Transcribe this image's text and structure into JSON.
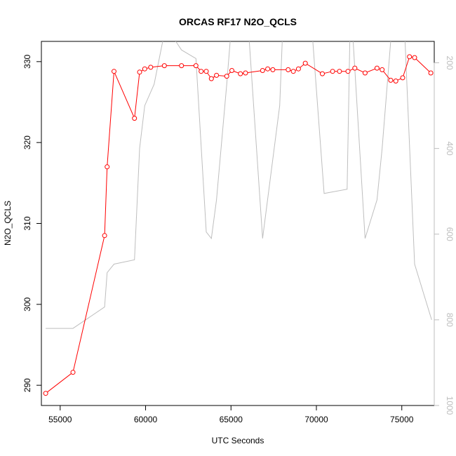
{
  "chart_data": {
    "type": "line",
    "title": "ORCAS RF17 N2O_QCLS",
    "xlabel": "UTC Seconds",
    "ylabel": "N2O_QCLS",
    "xlim": [
      53900,
      76900
    ],
    "ylim": [
      287.5,
      332.5
    ],
    "x_ticks": [
      55000,
      60000,
      65000,
      70000,
      75000
    ],
    "y_ticks": [
      290,
      300,
      310,
      320,
      330
    ],
    "y2lim": [
      1000,
      150
    ],
    "y2_ticks": [
      200,
      400,
      600,
      800,
      1000
    ],
    "y2_reversed": true,
    "grid": false,
    "legend": "none",
    "colors": {
      "primary": "#ff0000",
      "secondary": "#bebebe",
      "axis": "#000000",
      "axis_right": "#bdbdbd"
    },
    "series": [
      {
        "axis": "left",
        "style": "line+points",
        "x": [
          54150,
          55750,
          57600,
          57750,
          58150,
          59350,
          59650,
          59950,
          60300,
          61100,
          62100,
          62950,
          63250,
          63550,
          63850,
          64150,
          64750,
          65050,
          65550,
          65850,
          66850,
          67150,
          67450,
          68350,
          68650,
          68950,
          69350,
          70350,
          70950,
          71350,
          71850,
          72250,
          72850,
          73550,
          73850,
          74350,
          74650,
          75050,
          75450,
          75750,
          76700
        ],
        "y": [
          289.0,
          291.6,
          308.5,
          317.0,
          328.8,
          323.0,
          328.7,
          329.1,
          329.3,
          329.5,
          329.5,
          329.5,
          328.8,
          328.8,
          327.9,
          328.3,
          328.2,
          328.9,
          328.5,
          328.6,
          328.9,
          329.1,
          329.0,
          329.0,
          328.8,
          329.1,
          329.8,
          328.5,
          328.8,
          328.8,
          328.8,
          329.2,
          328.6,
          329.2,
          329.0,
          327.7,
          327.6,
          328.0,
          330.6,
          330.5,
          328.6
        ]
      },
      {
        "axis": "right",
        "style": "line",
        "x": [
          54150,
          55750,
          57600,
          57750,
          58150,
          59350,
          59650,
          59950,
          60500,
          61000,
          61100,
          62100,
          62950,
          63550,
          63850,
          64150,
          64750,
          65050,
          65550,
          65850,
          66850,
          67850,
          68000,
          68650,
          69550,
          70450,
          71800,
          72000,
          72850,
          73550,
          73850,
          74350,
          74800,
          75050,
          75750,
          76750
        ],
        "y": [
          820,
          820,
          770,
          690,
          670,
          660,
          400,
          300,
          250,
          150,
          110,
          170,
          190,
          595,
          610,
          520,
          250,
          100,
          20,
          20,
          610,
          300,
          150,
          20,
          20,
          505,
          495,
          50,
          610,
          520,
          400,
          150,
          20,
          20,
          670,
          800
        ]
      }
    ]
  }
}
